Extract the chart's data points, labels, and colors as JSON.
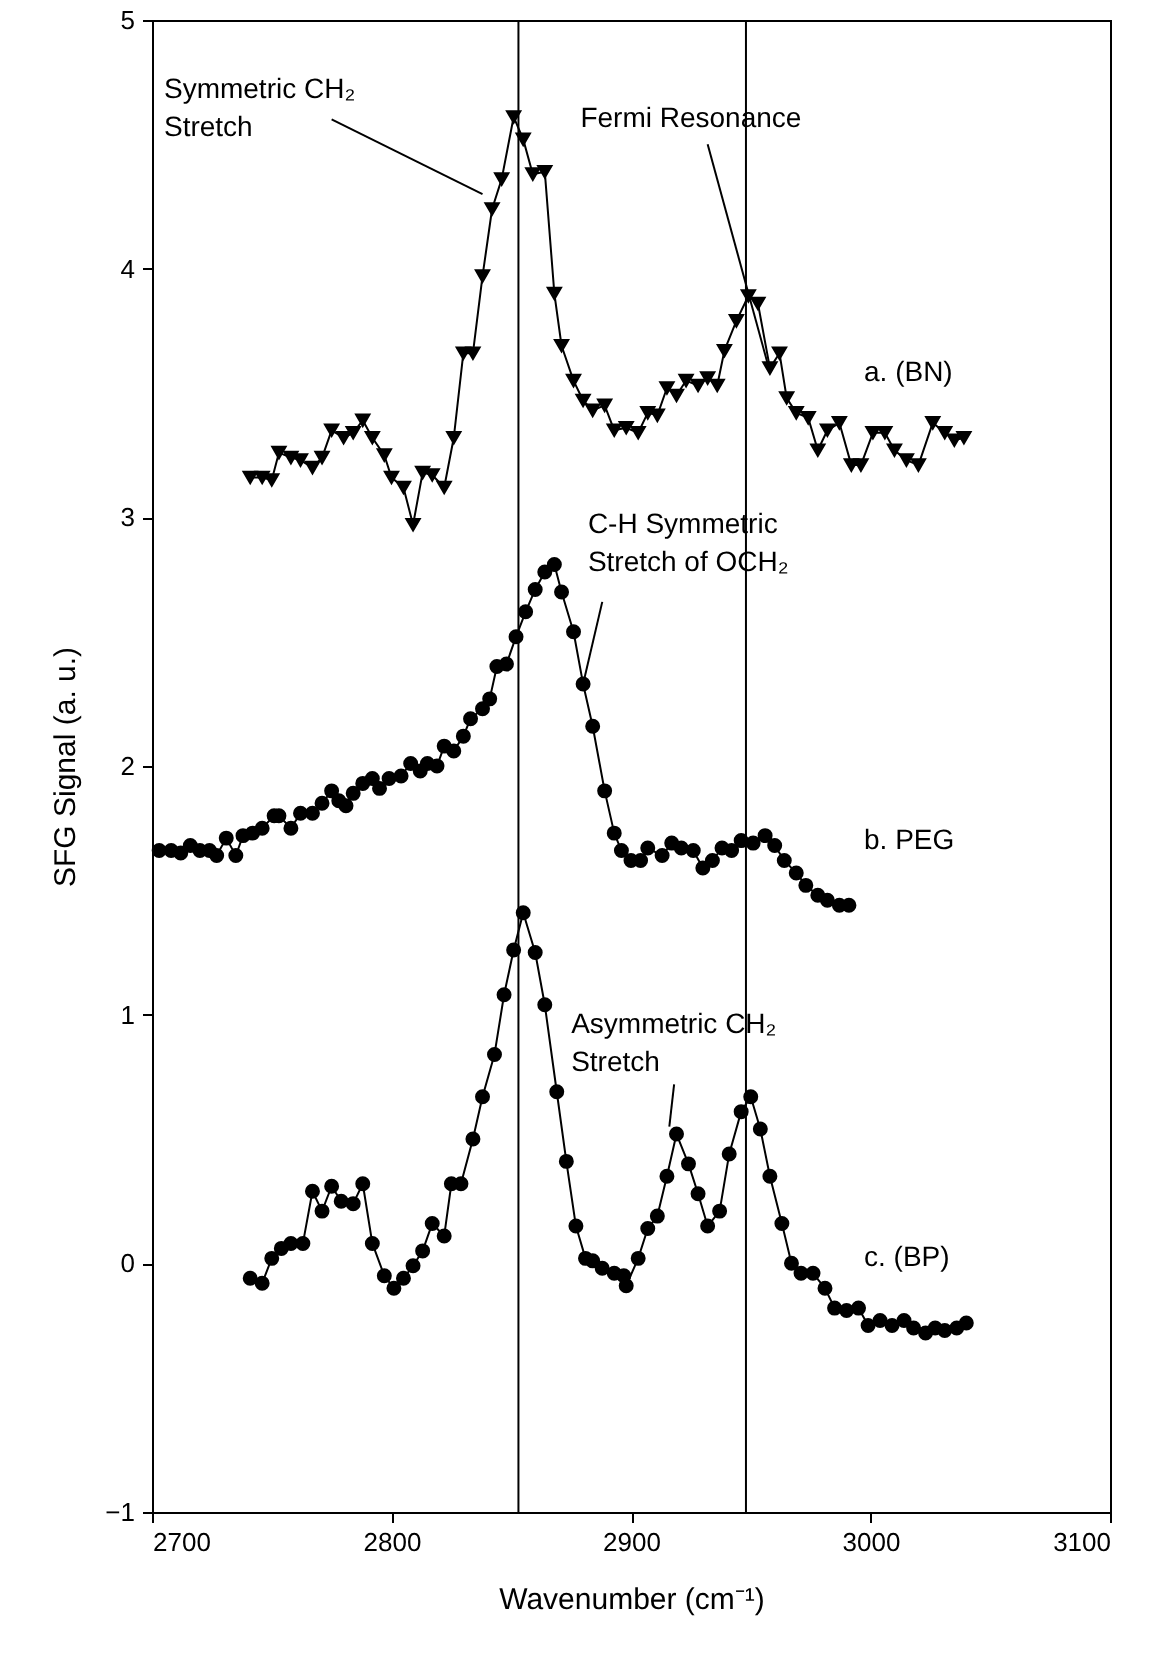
{
  "chart_data": {
    "type": "line",
    "xlabel": "Wavenumber (cm⁻¹)",
    "ylabel": "SFG Signal (a. u.)",
    "xlim": [
      2700,
      3100
    ],
    "xticks": [
      2700,
      2800,
      2900,
      3000,
      3100
    ],
    "ylim": [
      -1,
      5
    ],
    "yticks": [
      -1,
      0,
      1,
      2,
      3,
      4,
      5
    ],
    "grid": false,
    "series": [
      {
        "name": "a. (BN)",
        "color": "#000000",
        "marker": "triangle",
        "x": [
          2741,
          2746,
          2750,
          2753,
          2758,
          2762,
          2767,
          2771,
          2775,
          2780,
          2784,
          2788,
          2792,
          2797,
          2800,
          2805,
          2809,
          2813,
          2817,
          2822,
          2826,
          2830,
          2834,
          2838,
          2842,
          2846,
          2851,
          2855,
          2859,
          2864,
          2868,
          2871,
          2876,
          2880,
          2884,
          2889,
          2893,
          2898,
          2903,
          2907,
          2911,
          2915,
          2919,
          2923,
          2928,
          2932,
          2936,
          2939,
          2944,
          2949,
          2953,
          2958,
          2962,
          2965,
          2969,
          2974,
          2978,
          2982,
          2987,
          2992,
          2996,
          3001,
          3006,
          3010,
          3015,
          3020,
          3026,
          3031,
          3035,
          3039
        ],
        "values": [
          3.16,
          3.16,
          3.15,
          3.26,
          3.24,
          3.23,
          3.2,
          3.24,
          3.35,
          3.32,
          3.34,
          3.39,
          3.32,
          3.25,
          3.16,
          3.12,
          2.97,
          3.18,
          3.17,
          3.12,
          3.32,
          3.66,
          3.66,
          3.97,
          4.24,
          4.36,
          4.61,
          4.52,
          4.38,
          4.39,
          3.9,
          3.69,
          3.55,
          3.47,
          3.43,
          3.45,
          3.35,
          3.36,
          3.34,
          3.42,
          3.41,
          3.52,
          3.49,
          3.55,
          3.53,
          3.56,
          3.53,
          3.67,
          3.79,
          3.89,
          3.86,
          3.6,
          3.66,
          3.48,
          3.42,
          3.4,
          3.27,
          3.35,
          3.38,
          3.21,
          3.21,
          3.34,
          3.34,
          3.27,
          3.23,
          3.21,
          3.38,
          3.34,
          3.31,
          3.32
        ]
      },
      {
        "name": "b. PEG",
        "color": "#000000",
        "marker": "circle",
        "x": [
          2703,
          2708,
          2712,
          2716,
          2720,
          2724,
          2727,
          2731,
          2735,
          2738,
          2742,
          2746,
          2751,
          2753,
          2758,
          2762,
          2767,
          2771,
          2775,
          2778,
          2781,
          2784,
          2788,
          2792,
          2795,
          2799,
          2804,
          2808,
          2812,
          2815,
          2819,
          2822,
          2826,
          2830,
          2833,
          2838,
          2841,
          2844,
          2848,
          2852,
          2856,
          2860,
          2864,
          2868,
          2871,
          2876,
          2880,
          2884,
          2889,
          2893,
          2896,
          2900,
          2904,
          2907,
          2913,
          2917,
          2921,
          2926,
          2930,
          2934,
          2938,
          2942,
          2946,
          2951,
          2956,
          2960,
          2964,
          2969,
          2973,
          2978,
          2982,
          2987,
          2991
        ],
        "values": [
          1.66,
          1.66,
          1.65,
          1.68,
          1.66,
          1.66,
          1.64,
          1.71,
          1.64,
          1.72,
          1.73,
          1.75,
          1.8,
          1.8,
          1.75,
          1.81,
          1.81,
          1.85,
          1.9,
          1.86,
          1.84,
          1.89,
          1.93,
          1.95,
          1.91,
          1.95,
          1.96,
          2.01,
          1.98,
          2.01,
          2.0,
          2.08,
          2.06,
          2.12,
          2.19,
          2.23,
          2.27,
          2.4,
          2.41,
          2.52,
          2.62,
          2.71,
          2.78,
          2.81,
          2.7,
          2.54,
          2.33,
          2.16,
          1.9,
          1.73,
          1.66,
          1.62,
          1.62,
          1.67,
          1.64,
          1.69,
          1.67,
          1.66,
          1.59,
          1.62,
          1.67,
          1.66,
          1.7,
          1.69,
          1.72,
          1.68,
          1.62,
          1.57,
          1.52,
          1.48,
          1.46,
          1.44,
          1.44
        ]
      },
      {
        "name": "c. (BP)",
        "color": "#000000",
        "marker": "circle",
        "x": [
          2741,
          2746,
          2750,
          2754,
          2758,
          2763,
          2767,
          2771,
          2775,
          2779,
          2784,
          2788,
          2792,
          2797,
          2801,
          2805,
          2809,
          2813,
          2817,
          2822,
          2825,
          2829,
          2834,
          2838,
          2843,
          2847,
          2851,
          2855,
          2860,
          2864,
          2869,
          2873,
          2877,
          2881,
          2884,
          2888,
          2893,
          2897,
          2898,
          2903,
          2907,
          2911,
          2915,
          2919,
          2924,
          2928,
          2932,
          2937,
          2941,
          2946,
          2950,
          2954,
          2958,
          2963,
          2967,
          2971,
          2976,
          2981,
          2985,
          2990,
          2995,
          2999,
          3004,
          3009,
          3014,
          3018,
          3023,
          3027,
          3031,
          3036,
          3040
        ],
        "values": [
          -0.06,
          -0.08,
          0.02,
          0.06,
          0.08,
          0.08,
          0.29,
          0.21,
          0.31,
          0.25,
          0.24,
          0.32,
          0.08,
          -0.05,
          -0.1,
          -0.06,
          -0.01,
          0.05,
          0.16,
          0.11,
          0.32,
          0.32,
          0.5,
          0.67,
          0.84,
          1.08,
          1.26,
          1.41,
          1.25,
          1.04,
          0.69,
          0.41,
          0.15,
          0.02,
          0.01,
          -0.02,
          -0.04,
          -0.05,
          -0.09,
          0.02,
          0.14,
          0.19,
          0.35,
          0.52,
          0.4,
          0.28,
          0.15,
          0.21,
          0.44,
          0.61,
          0.67,
          0.54,
          0.35,
          0.16,
          0.0,
          -0.04,
          -0.04,
          -0.1,
          -0.18,
          -0.19,
          -0.18,
          -0.25,
          -0.23,
          -0.25,
          -0.23,
          -0.26,
          -0.28,
          -0.26,
          -0.27,
          -0.26,
          -0.24
        ]
      }
    ],
    "ref_lines": [
      {
        "axis": "x",
        "value": 2853,
        "color": "#000000"
      },
      {
        "axis": "x",
        "value": 2948,
        "color": "#000000"
      }
    ],
    "annotations": [
      {
        "text": "Symmetric CH₂\nStretch",
        "x": 2838,
        "y": 4.3
      },
      {
        "text": "Fermi Resonance",
        "x": 2957,
        "y": 3.62
      },
      {
        "text": "C-H Symmetric\nStretch of OCH₂",
        "x": 2880,
        "y": 2.33
      },
      {
        "text": "Asymmetric CH₂\nStretch",
        "x": 2916,
        "y": 0.55
      }
    ]
  }
}
